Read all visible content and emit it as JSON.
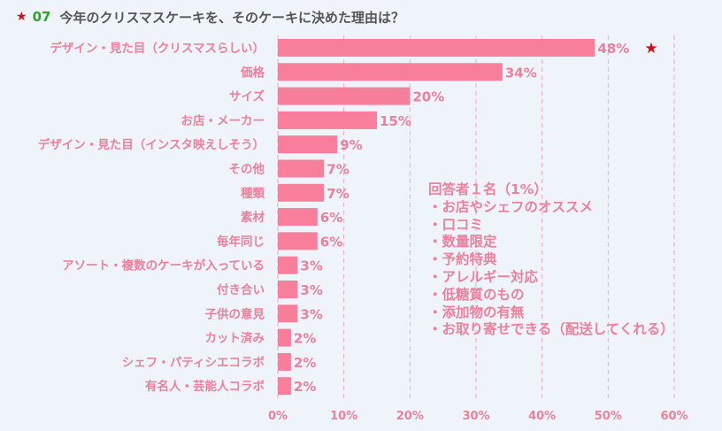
{
  "title": {
    "star": "★",
    "number": "07",
    "text": "今年のクリスマスケーキを、そのケーキに決めた理由は？"
  },
  "colors": {
    "bar": "#f77f9c",
    "text": "#ef7f9a",
    "grid": "#f5a9c0",
    "star": "#d10f1c",
    "number": "#2aa52a"
  },
  "chart_data": {
    "type": "bar",
    "orientation": "horizontal",
    "categories": [
      "デザイン・見た目（クリスマスらしい）",
      "価格",
      "サイズ",
      "お店・メーカー",
      "デザイン・見た目（インスタ映えしそう）",
      "その他",
      "種類",
      "素材",
      "毎年同じ",
      "アソート・複数のケーキが入っている",
      "付き合い",
      "子供の意見",
      "カット済み",
      "シェフ・パティシエコラボ",
      "有名人・芸能人コラボ"
    ],
    "values": [
      48,
      34,
      20,
      15,
      9,
      7,
      7,
      6,
      6,
      3,
      3,
      3,
      2,
      2,
      2
    ],
    "value_labels": [
      "48%",
      "34%",
      "20%",
      "15%",
      "9%",
      "7%",
      "7%",
      "6%",
      "6%",
      "3%",
      "3%",
      "3%",
      "2%",
      "2%",
      "2%"
    ],
    "xlim": [
      0,
      60
    ],
    "ticks": [
      0,
      10,
      20,
      30,
      40,
      50,
      60
    ],
    "tick_labels": [
      "0%",
      "10%",
      "20%",
      "30%",
      "40%",
      "50%",
      "60%"
    ],
    "grid": true,
    "highlight_marker": "★",
    "highlight_index": 0
  },
  "note": {
    "heading": "回答者１名（1%）",
    "items": [
      "・お店やシェフのオススメ",
      "・口コミ",
      "・数量限定",
      "・予約特典",
      "・アレルギー対応",
      "・低糖質のもの",
      "・添加物の有無",
      "・お取り寄せできる（配送してくれる）"
    ]
  }
}
